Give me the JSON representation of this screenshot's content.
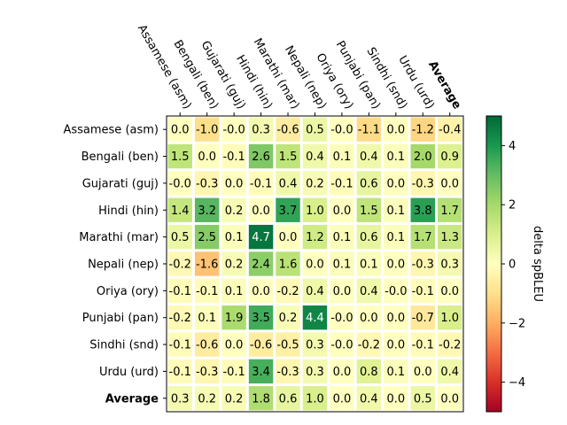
{
  "chart_data": {
    "type": "heatmap",
    "title": "",
    "columns": [
      "Assamese (asm)",
      "Bengali (ben)",
      "Gujarati (guj)",
      "Hindi (hin)",
      "Marathi (mar)",
      "Nepali (nep)",
      "Oriya (ory)",
      "Punjabi (pan)",
      "Sindhi (snd)",
      "Urdu (urd)",
      "Average"
    ],
    "rows": [
      "Assamese (asm)",
      "Bengali (ben)",
      "Gujarati (guj)",
      "Hindi (hin)",
      "Marathi (mar)",
      "Nepali (nep)",
      "Oriya (ory)",
      "Punjabi (pan)",
      "Sindhi (snd)",
      "Urdu (urd)",
      "Average"
    ],
    "bold_labels": [
      "Average"
    ],
    "values": [
      [
        "0.0",
        "-1.0",
        "-0.0",
        "0.3",
        "-0.6",
        "0.5",
        "-0.0",
        "-1.1",
        "0.0",
        "-1.2",
        "-0.4"
      ],
      [
        "1.5",
        "0.0",
        "-0.1",
        "2.6",
        "1.5",
        "0.4",
        "0.1",
        "0.4",
        "0.1",
        "2.0",
        "0.9"
      ],
      [
        "-0.0",
        "-0.3",
        "0.0",
        "-0.1",
        "0.4",
        "0.2",
        "-0.1",
        "0.6",
        "0.0",
        "-0.3",
        "0.0"
      ],
      [
        "1.4",
        "3.2",
        "0.2",
        "0.0",
        "3.7",
        "1.0",
        "0.0",
        "1.5",
        "0.1",
        "3.8",
        "1.7"
      ],
      [
        "0.5",
        "2.5",
        "0.1",
        "4.7",
        "0.0",
        "1.2",
        "0.1",
        "0.6",
        "0.1",
        "1.7",
        "1.3"
      ],
      [
        "-0.2",
        "-1.6",
        "0.2",
        "2.4",
        "1.6",
        "0.0",
        "0.1",
        "0.1",
        "0.0",
        "-0.3",
        "0.3"
      ],
      [
        "-0.1",
        "-0.1",
        "0.1",
        "0.0",
        "-0.2",
        "0.4",
        "0.0",
        "0.4",
        "-0.0",
        "-0.1",
        "0.0"
      ],
      [
        "-0.2",
        "0.1",
        "1.9",
        "3.5",
        "0.2",
        "4.4",
        "-0.0",
        "0.0",
        "0.0",
        "-0.7",
        "1.0"
      ],
      [
        "-0.1",
        "-0.6",
        "0.0",
        "-0.6",
        "-0.5",
        "0.3",
        "-0.0",
        "-0.2",
        "0.0",
        "-0.1",
        "-0.2"
      ],
      [
        "-0.1",
        "-0.3",
        "-0.1",
        "3.4",
        "-0.3",
        "0.3",
        "0.0",
        "0.8",
        "0.1",
        "0.0",
        "0.4"
      ],
      [
        "0.3",
        "0.2",
        "0.2",
        "1.8",
        "0.6",
        "1.0",
        "0.0",
        "0.4",
        "0.0",
        "0.5",
        "0.0"
      ]
    ],
    "colorbar": {
      "label": "delta spBLEU",
      "vmin": -5,
      "vmax": 5,
      "ticks": [
        -4,
        -2,
        0,
        2,
        4
      ],
      "tick_labels": [
        "−4",
        "−2",
        "0",
        "2",
        "4"
      ],
      "colormap": "RdYlGn"
    },
    "grid": false
  }
}
